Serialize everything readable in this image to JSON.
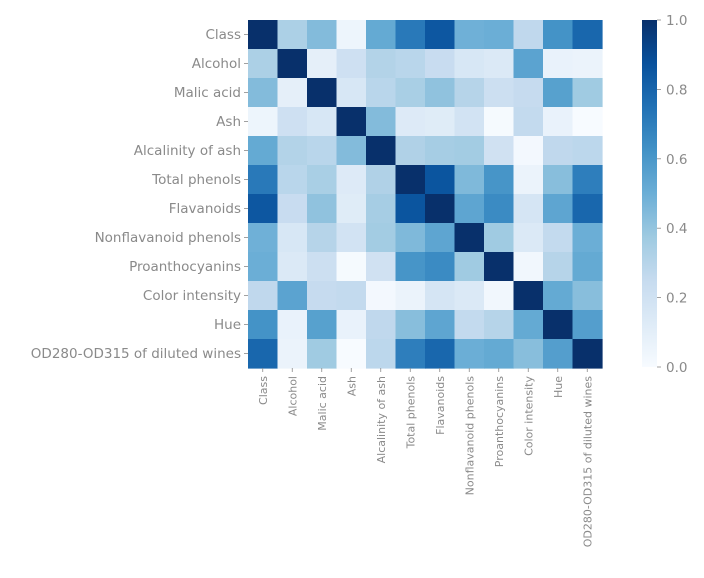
{
  "chart_data": {
    "type": "heatmap",
    "title": "",
    "xlabel": "",
    "ylabel": "",
    "labels": [
      "Class",
      "Alcohol",
      "Malic acid",
      "Ash",
      "Alcalinity of ash",
      "Total phenols",
      "Flavanoids",
      "Nonflavanoid phenols",
      "Proanthocyanins",
      "Color intensity",
      "Hue",
      "OD280-OD315 of diluted wines"
    ],
    "matrix": [
      [
        1.0,
        0.33,
        0.44,
        0.05,
        0.52,
        0.72,
        0.85,
        0.49,
        0.5,
        0.27,
        0.62,
        0.79
      ],
      [
        0.33,
        1.0,
        0.09,
        0.21,
        0.31,
        0.29,
        0.24,
        0.16,
        0.14,
        0.55,
        0.07,
        0.06
      ],
      [
        0.44,
        0.09,
        1.0,
        0.16,
        0.29,
        0.34,
        0.41,
        0.3,
        0.22,
        0.25,
        0.56,
        0.37
      ],
      [
        0.05,
        0.21,
        0.16,
        1.0,
        0.44,
        0.13,
        0.12,
        0.19,
        0.01,
        0.26,
        0.07,
        0.0
      ],
      [
        0.52,
        0.31,
        0.29,
        0.44,
        1.0,
        0.32,
        0.35,
        0.36,
        0.2,
        0.02,
        0.27,
        0.28
      ],
      [
        0.72,
        0.29,
        0.34,
        0.13,
        0.32,
        1.0,
        0.86,
        0.45,
        0.61,
        0.06,
        0.43,
        0.7
      ],
      [
        0.85,
        0.24,
        0.41,
        0.12,
        0.35,
        0.86,
        1.0,
        0.54,
        0.65,
        0.17,
        0.54,
        0.79
      ],
      [
        0.49,
        0.16,
        0.3,
        0.19,
        0.36,
        0.45,
        0.54,
        1.0,
        0.37,
        0.14,
        0.26,
        0.5
      ],
      [
        0.5,
        0.14,
        0.22,
        0.01,
        0.2,
        0.61,
        0.65,
        0.37,
        1.0,
        0.03,
        0.3,
        0.52
      ],
      [
        0.27,
        0.55,
        0.25,
        0.26,
        0.02,
        0.06,
        0.17,
        0.14,
        0.03,
        1.0,
        0.52,
        0.43
      ],
      [
        0.62,
        0.07,
        0.56,
        0.07,
        0.27,
        0.43,
        0.54,
        0.26,
        0.3,
        0.52,
        1.0,
        0.57
      ],
      [
        0.79,
        0.06,
        0.37,
        0.0,
        0.28,
        0.7,
        0.79,
        0.5,
        0.52,
        0.43,
        0.57,
        1.0
      ]
    ],
    "value_range": [
      0.0,
      1.0
    ],
    "colorbar_ticks": [
      "0.0",
      "0.2",
      "0.4",
      "0.6",
      "0.8",
      "1.0"
    ],
    "colormap": "Blues",
    "colors": {
      "low": "#f7fbff",
      "high": "#08306b",
      "tick_text": "#8a8a8a"
    },
    "legend": "right"
  }
}
